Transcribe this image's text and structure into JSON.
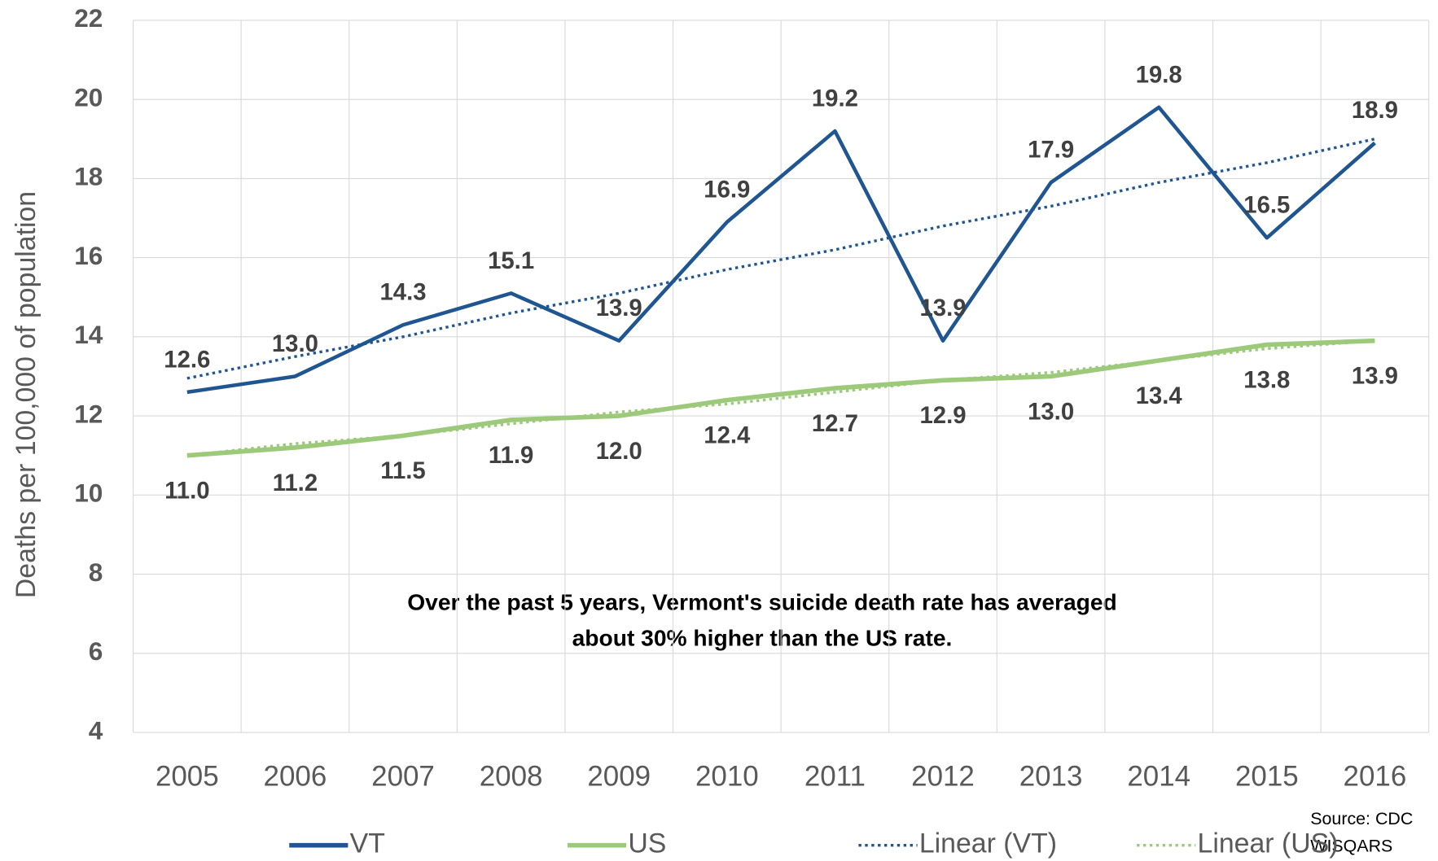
{
  "chart_data": {
    "type": "line",
    "ylabel": "Deaths per 100,000 of population",
    "categories": [
      "2005",
      "2006",
      "2007",
      "2008",
      "2009",
      "2010",
      "2011",
      "2012",
      "2013",
      "2014",
      "2015",
      "2016"
    ],
    "series": [
      {
        "name": "VT",
        "color": "#1f5591",
        "style": "solid",
        "data_labels": "above",
        "values": [
          12.6,
          13.0,
          14.3,
          15.1,
          13.9,
          16.9,
          19.2,
          13.9,
          17.9,
          19.8,
          16.5,
          18.9
        ],
        "value_labels": [
          "12.6",
          "13.0",
          "14.3",
          "15.1",
          "13.9",
          "16.9",
          "19.2",
          "13.9",
          "17.9",
          "19.8",
          "16.5",
          "18.9"
        ]
      },
      {
        "name": "US",
        "color": "#9dc97a",
        "style": "solid",
        "data_labels": "below",
        "values": [
          11.0,
          11.2,
          11.5,
          11.9,
          12.0,
          12.4,
          12.7,
          12.9,
          13.0,
          13.4,
          13.8,
          13.9
        ],
        "value_labels": [
          "11.0",
          "11.2",
          "11.5",
          "11.9",
          "12.0",
          "12.4",
          "12.7",
          "12.9",
          "13.0",
          "13.4",
          "13.8",
          "13.9"
        ]
      },
      {
        "name": "Linear (VT)",
        "color": "#1f5591",
        "style": "dotted",
        "values": [
          12.95,
          13.5,
          14.0,
          14.6,
          15.1,
          15.7,
          16.2,
          16.8,
          17.3,
          17.9,
          18.4,
          19.0
        ]
      },
      {
        "name": "Linear (US)",
        "color": "#9dc97a",
        "style": "dotted",
        "values": [
          11.0,
          11.3,
          11.5,
          11.8,
          12.1,
          12.3,
          12.6,
          12.9,
          13.1,
          13.4,
          13.7,
          13.9
        ]
      }
    ],
    "ylim": [
      4,
      22
    ],
    "yticks": [
      4,
      6,
      8,
      10,
      12,
      14,
      16,
      18,
      20,
      22
    ],
    "grid": true,
    "annotation": [
      "Over the past 5 years, Vermont's suicide death rate has averaged",
      "about 30% higher than the US rate."
    ],
    "source": [
      "Source:  CDC",
      "WISQARS"
    ],
    "legend": "bottom"
  }
}
